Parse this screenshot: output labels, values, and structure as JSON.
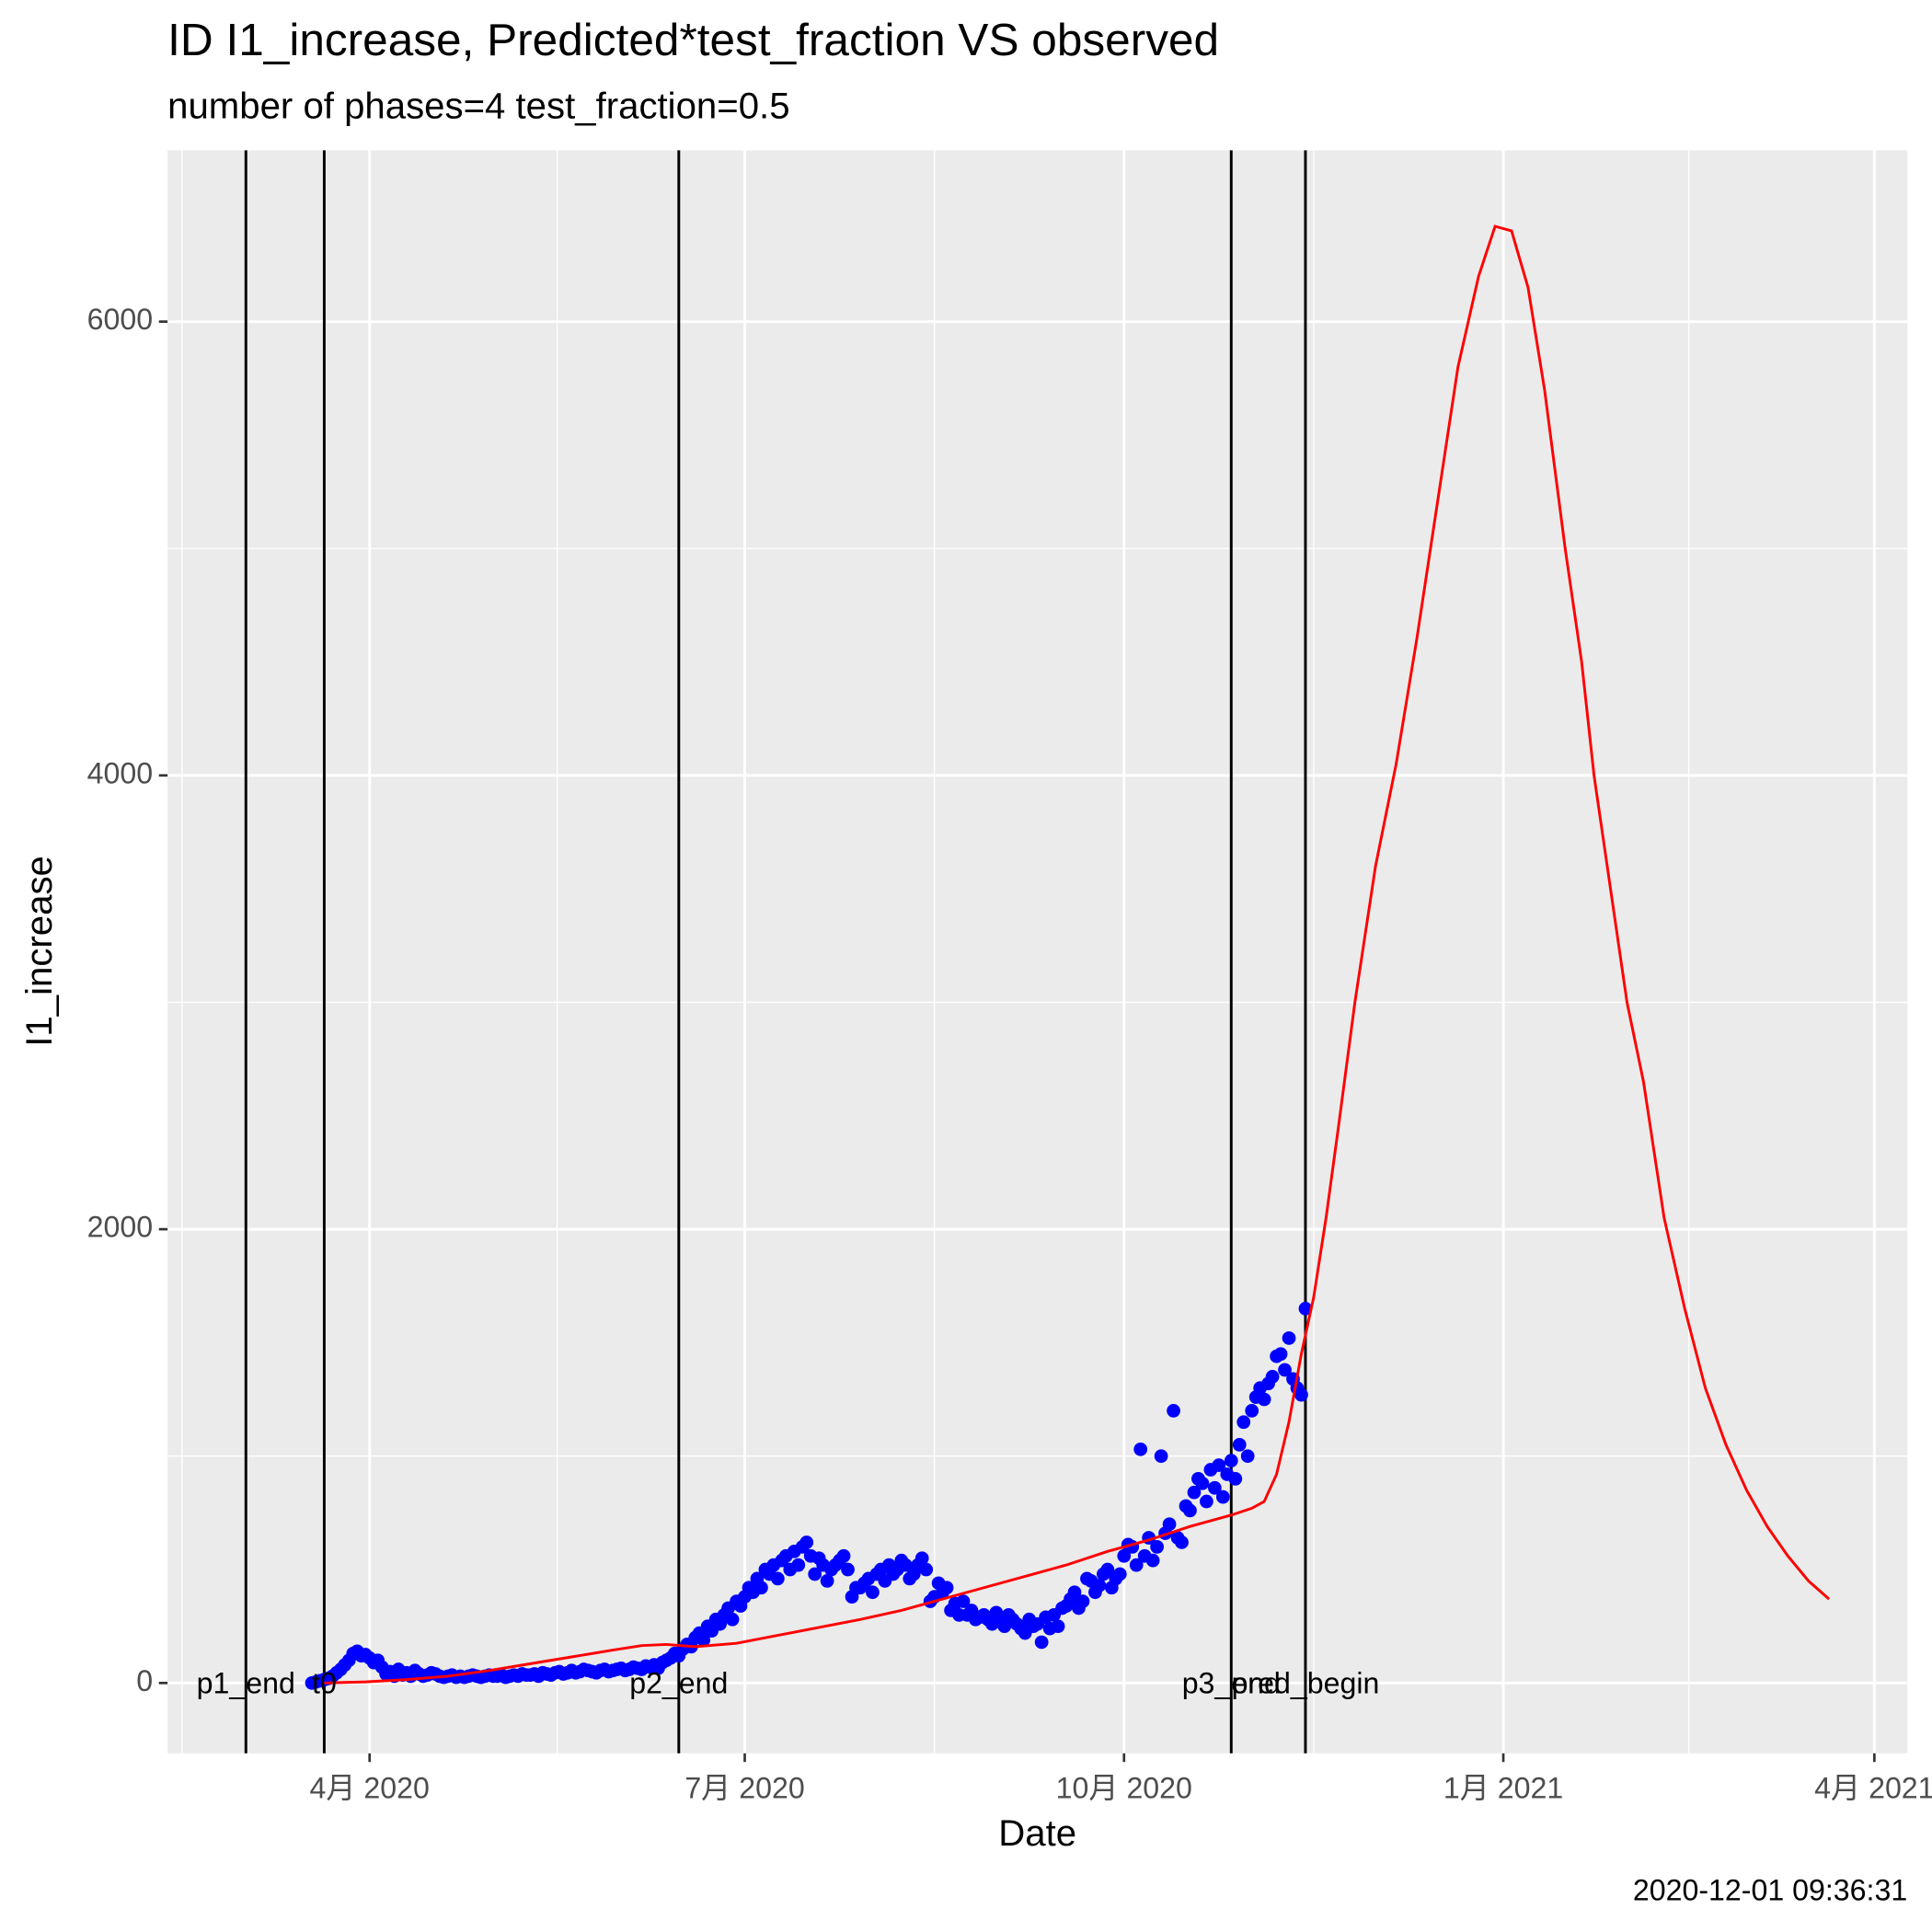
{
  "chart_data": {
    "type": "scatter",
    "title": "ID I1_increase, Predicted*test_fraction VS observed",
    "subtitle": "number of phases=4   test_fraction=0.5",
    "x_label": "Date",
    "y_label": "I1_increase",
    "caption": "2020-12-01 09:36:31",
    "grid": true,
    "xlim": [
      42,
      464
    ],
    "xticks": [
      {
        "value": 91,
        "label": "4月 2020"
      },
      {
        "value": 182,
        "label": "7月 2020"
      },
      {
        "value": 274,
        "label": "10月 2020"
      },
      {
        "value": 366,
        "label": "1月 2021"
      },
      {
        "value": 456,
        "label": "4月 2021"
      }
    ],
    "ylim": [
      -310,
      6755
    ],
    "yticks": [
      0,
      2000,
      4000,
      6000
    ],
    "vlines": [
      {
        "label": "p1_end",
        "x": 61
      },
      {
        "label": "t0",
        "x": 80
      },
      {
        "label": "p2_end",
        "x": 166
      },
      {
        "label": "p3_end",
        "x": 300
      },
      {
        "label": "pred_begin",
        "x": 318
      }
    ],
    "series": [
      {
        "type": "scatter",
        "color": "#0000FF",
        "x": [
          77,
          78,
          79,
          80,
          81,
          82,
          83,
          84,
          85,
          86,
          87,
          88,
          89,
          90,
          91,
          92,
          93,
          94,
          95,
          96,
          97,
          98,
          99,
          100,
          101,
          102,
          103,
          104,
          105,
          106,
          107,
          108,
          109,
          110,
          111,
          112,
          113,
          114,
          115,
          116,
          117,
          118,
          119,
          120,
          121,
          122,
          123,
          124,
          125,
          126,
          127,
          128,
          129,
          130,
          131,
          132,
          133,
          134,
          135,
          136,
          137,
          138,
          139,
          140,
          141,
          142,
          143,
          144,
          145,
          146,
          147,
          148,
          149,
          150,
          151,
          152,
          153,
          154,
          155,
          156,
          157,
          158,
          159,
          160,
          161,
          162,
          163,
          164,
          165,
          166,
          167,
          168,
          169,
          170,
          171,
          172,
          173,
          174,
          175,
          176,
          177,
          178,
          179,
          180,
          181,
          182,
          183,
          184,
          185,
          186,
          187,
          188,
          189,
          190,
          191,
          192,
          193,
          194,
          195,
          196,
          197,
          198,
          199,
          200,
          201,
          202,
          203,
          204,
          205,
          206,
          207,
          208,
          209,
          210,
          211,
          212,
          213,
          214,
          215,
          216,
          217,
          218,
          219,
          220,
          221,
          222,
          223,
          224,
          225,
          226,
          227,
          228,
          229,
          230,
          231,
          232,
          233,
          234,
          235,
          236,
          237,
          238,
          239,
          240,
          241,
          242,
          243,
          244,
          245,
          246,
          247,
          248,
          249,
          250,
          251,
          252,
          253,
          254,
          255,
          256,
          257,
          258,
          259,
          260,
          261,
          262,
          263,
          264,
          265,
          266,
          267,
          268,
          269,
          270,
          271,
          272,
          273,
          274,
          275,
          276,
          277,
          278,
          279,
          280,
          281,
          282,
          283,
          284,
          285,
          286,
          287,
          288,
          289,
          290,
          291,
          292,
          293,
          294,
          295,
          296,
          297,
          298,
          299,
          300,
          301,
          302,
          303,
          304,
          305,
          306,
          307,
          308,
          309,
          310,
          311,
          312,
          313,
          314,
          315,
          316,
          317,
          318
        ],
        "values": [
          0,
          5,
          10,
          15,
          20,
          30,
          45,
          60,
          80,
          100,
          130,
          140,
          120,
          125,
          110,
          90,
          100,
          70,
          40,
          50,
          30,
          60,
          35,
          45,
          30,
          55,
          40,
          30,
          35,
          45,
          40,
          30,
          25,
          30,
          35,
          25,
          30,
          25,
          30,
          35,
          30,
          25,
          30,
          35,
          30,
          30,
          35,
          25,
          30,
          35,
          30,
          40,
          35,
          35,
          40,
          30,
          45,
          40,
          35,
          45,
          50,
          40,
          45,
          55,
          45,
          50,
          60,
          55,
          50,
          45,
          55,
          60,
          50,
          55,
          60,
          65,
          55,
          60,
          70,
          65,
          60,
          75,
          70,
          80,
          65,
          90,
          100,
          110,
          130,
          120,
          150,
          170,
          160,
          200,
          220,
          190,
          250,
          230,
          280,
          260,
          300,
          330,
          280,
          360,
          340,
          380,
          420,
          400,
          460,
          420,
          500,
          480,
          520,
          460,
          540,
          560,
          500,
          580,
          520,
          600,
          620,
          560,
          480,
          550,
          520,
          450,
          500,
          520,
          540,
          560,
          500,
          380,
          420,
          420,
          440,
          460,
          400,
          480,
          500,
          450,
          520,
          480,
          500,
          540,
          520,
          460,
          480,
          520,
          550,
          500,
          360,
          380,
          440,
          400,
          420,
          320,
          350,
          300,
          360,
          300,
          320,
          280,
          290,
          300,
          280,
          260,
          310,
          270,
          250,
          300,
          280,
          260,
          240,
          220,
          280,
          250,
          260,
          180,
          290,
          240,
          300,
          250,
          330,
          340,
          370,
          400,
          330,
          360,
          460,
          450,
          400,
          430,
          480,
          500,
          420,
          460,
          480,
          560,
          610,
          600,
          520,
          1030,
          560,
          640,
          540,
          600,
          1000,
          660,
          700,
          1200,
          640,
          620,
          780,
          760,
          840,
          900,
          880,
          800,
          940,
          860,
          960,
          820,
          920,
          980,
          900,
          1050,
          1150,
          1000,
          1200,
          1260,
          1300,
          1250,
          1320,
          1350,
          1440,
          1450,
          1380,
          1520,
          1340,
          1300,
          1270,
          1650
        ]
      },
      {
        "type": "line",
        "color": "#FF0000",
        "x": [
          80,
          90,
          100,
          110,
          120,
          130,
          140,
          150,
          157,
          163,
          170,
          180,
          190,
          200,
          210,
          220,
          230,
          240,
          250,
          260,
          270,
          280,
          290,
          300,
          305,
          308,
          311,
          314,
          317,
          320,
          323,
          326,
          330,
          335,
          340,
          345,
          350,
          355,
          360,
          364,
          368,
          372,
          376,
          381,
          385,
          388,
          392,
          396,
          400,
          405,
          410,
          415,
          420,
          425,
          430,
          435,
          440,
          445
        ],
        "values": [
          0,
          5,
          15,
          30,
          55,
          85,
          115,
          145,
          165,
          170,
          160,
          175,
          210,
          245,
          280,
          320,
          370,
          420,
          470,
          520,
          580,
          630,
          690,
          740,
          770,
          800,
          920,
          1150,
          1450,
          1700,
          2050,
          2450,
          3000,
          3600,
          4050,
          4600,
          5200,
          5800,
          6200,
          6420,
          6400,
          6150,
          5700,
          5000,
          4500,
          4000,
          3500,
          3000,
          2650,
          2050,
          1650,
          1300,
          1050,
          850,
          690,
          560,
          450,
          370
        ]
      }
    ]
  }
}
